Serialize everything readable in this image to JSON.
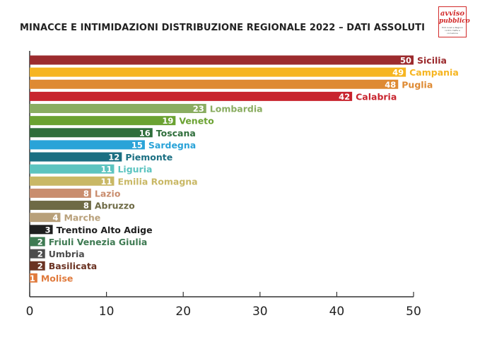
{
  "title": "MINACCE E INTIMIDAZIONI DISTRIBUZIONE REGIONALE 2022 – DATI ASSOLUTI",
  "logo": {
    "line1": "avviso",
    "line2": "pubblico",
    "tagline": "Enti locali e Regioni contro mafie e corruzione"
  },
  "chart_data": {
    "type": "bar",
    "orientation": "horizontal",
    "title": "MINACCE E INTIMIDAZIONI DISTRIBUZIONE REGIONALE 2022 – DATI ASSOLUTI",
    "xlabel": "",
    "ylabel": "",
    "xlim": [
      0,
      50
    ],
    "xticks": [
      0,
      10,
      20,
      30,
      40,
      50
    ],
    "grid": false,
    "bars": [
      {
        "label": "Sicilia",
        "value": 50,
        "color": "#9c2b2e"
      },
      {
        "label": "Campania",
        "value": 49,
        "color": "#f6b520"
      },
      {
        "label": "Puglia",
        "value": 48,
        "color": "#de8a33"
      },
      {
        "label": "Calabria",
        "value": 42,
        "color": "#c8242e"
      },
      {
        "label": "Lombardia",
        "value": 23,
        "color": "#8aad61"
      },
      {
        "label": "Veneto",
        "value": 19,
        "color": "#6ba232"
      },
      {
        "label": "Toscana",
        "value": 16,
        "color": "#2f6e3b"
      },
      {
        "label": "Sardegna",
        "value": 15,
        "color": "#2aa3d8"
      },
      {
        "label": "Piemonte",
        "value": 12,
        "color": "#1b6f82"
      },
      {
        "label": "Liguria",
        "value": 11,
        "color": "#5cc4c0"
      },
      {
        "label": "Emilia Romagna",
        "value": 11,
        "color": "#c9b865"
      },
      {
        "label": "Lazio",
        "value": 8,
        "color": "#c98d6e"
      },
      {
        "label": "Abruzzo",
        "value": 8,
        "color": "#6e6a45"
      },
      {
        "label": "Marche",
        "value": 4,
        "color": "#b8a07a"
      },
      {
        "label": "Trentino Alto Adige",
        "value": 3,
        "color": "#1f1f1f"
      },
      {
        "label": "Friuli Venezia Giulia",
        "value": 2,
        "color": "#3e7a52"
      },
      {
        "label": "Umbria",
        "value": 2,
        "color": "#4c4c4c"
      },
      {
        "label": "Basilicata",
        "value": 2,
        "color": "#6b3323"
      },
      {
        "label": "Molise",
        "value": 1,
        "color": "#e07a3c"
      }
    ]
  }
}
